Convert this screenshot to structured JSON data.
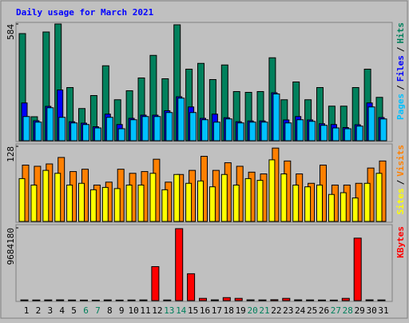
{
  "chart_data": [
    {
      "type": "bar",
      "title": "Daily usage for March 2021",
      "title_color": "#0000ff",
      "ylim": [
        0,
        584
      ],
      "yticks": [
        584
      ],
      "legend_separator": "/",
      "series": [
        {
          "name": "Hits",
          "color": "#00805c",
          "values": [
            536,
            120,
            544,
            584,
            266,
            161,
            226,
            375,
            205,
            250,
            314,
            427,
            310,
            580,
            358,
            387,
            306,
            379,
            246,
            242,
            246,
            415,
            205,
            294,
            205,
            266,
            173,
            173,
            266,
            358,
            217
          ]
        },
        {
          "name": "Files",
          "color": "#0000ff",
          "values": [
            189,
            100,
            172,
            254,
            95,
            88,
            70,
            133,
            81,
            112,
            128,
            128,
            150,
            220,
            169,
            112,
            133,
            115,
            95,
            99,
            99,
            240,
            104,
            121,
            104,
            85,
            81,
            66,
            80,
            189,
            116
          ]
        },
        {
          "name": "Pages",
          "color": "#00c0ff",
          "values": [
            121,
            93,
            165,
            117,
            89,
            81,
            64,
            117,
            60,
            105,
            121,
            121,
            141,
            213,
            141,
            105,
            93,
            109,
            89,
            93,
            93,
            234,
            89,
            105,
            97,
            77,
            64,
            60,
            73,
            169,
            109
          ]
        }
      ]
    },
    {
      "type": "bar",
      "ylim": [
        0,
        128
      ],
      "yticks": [
        128
      ],
      "legend_separator": "/",
      "series": [
        {
          "name": "Visits",
          "color": "#ff8000",
          "values": [
            96,
            94,
            98,
            109,
            85,
            89,
            62,
            67,
            89,
            82,
            85,
            106,
            67,
            80,
            87,
            111,
            87,
            100,
            94,
            84,
            81,
            125,
            103,
            81,
            65,
            96,
            62,
            62,
            65,
            91,
            103
          ]
        },
        {
          "name": "Sites",
          "color": "#ffff00",
          "values": [
            73,
            62,
            87,
            82,
            62,
            65,
            54,
            58,
            56,
            62,
            62,
            82,
            54,
            80,
            65,
            69,
            59,
            80,
            62,
            73,
            70,
            105,
            81,
            62,
            59,
            62,
            46,
            49,
            40,
            65,
            82
          ]
        }
      ]
    },
    {
      "type": "bar",
      "ylim": [
        0,
        9684180
      ],
      "yticks": [
        9684180
      ],
      "categories": [
        "1",
        "2",
        "3",
        "4",
        "5",
        "6",
        "7",
        "8",
        "9",
        "10",
        "11",
        "12",
        "13",
        "14",
        "15",
        "16",
        "17",
        "18",
        "19",
        "20",
        "21",
        "22",
        "23",
        "24",
        "25",
        "26",
        "27",
        "28",
        "29",
        "30",
        "31"
      ],
      "category_colors": [
        "#000000",
        "#000000",
        "#000000",
        "#000000",
        "#000000",
        "#00805c",
        "#00805c",
        "#000000",
        "#000000",
        "#000000",
        "#000000",
        "#000000",
        "#00805c",
        "#00805c",
        "#000000",
        "#000000",
        "#000000",
        "#000000",
        "#000000",
        "#00805c",
        "#00805c",
        "#000000",
        "#000000",
        "#000000",
        "#000000",
        "#000000",
        "#00805c",
        "#00805c",
        "#000000",
        "#000000",
        "#000000"
      ],
      "series": [
        {
          "name": "KBytes",
          "color": "#ff0000",
          "values": [
            90000,
            80000,
            90000,
            100000,
            80000,
            70000,
            60000,
            90000,
            70000,
            80000,
            90000,
            4526300,
            80000,
            9578900,
            3579000,
            300000,
            100000,
            400000,
            300000,
            100000,
            90000,
            120000,
            300000,
            100000,
            90000,
            80000,
            70000,
            300000,
            8316000,
            100000,
            90000
          ]
        }
      ]
    }
  ]
}
